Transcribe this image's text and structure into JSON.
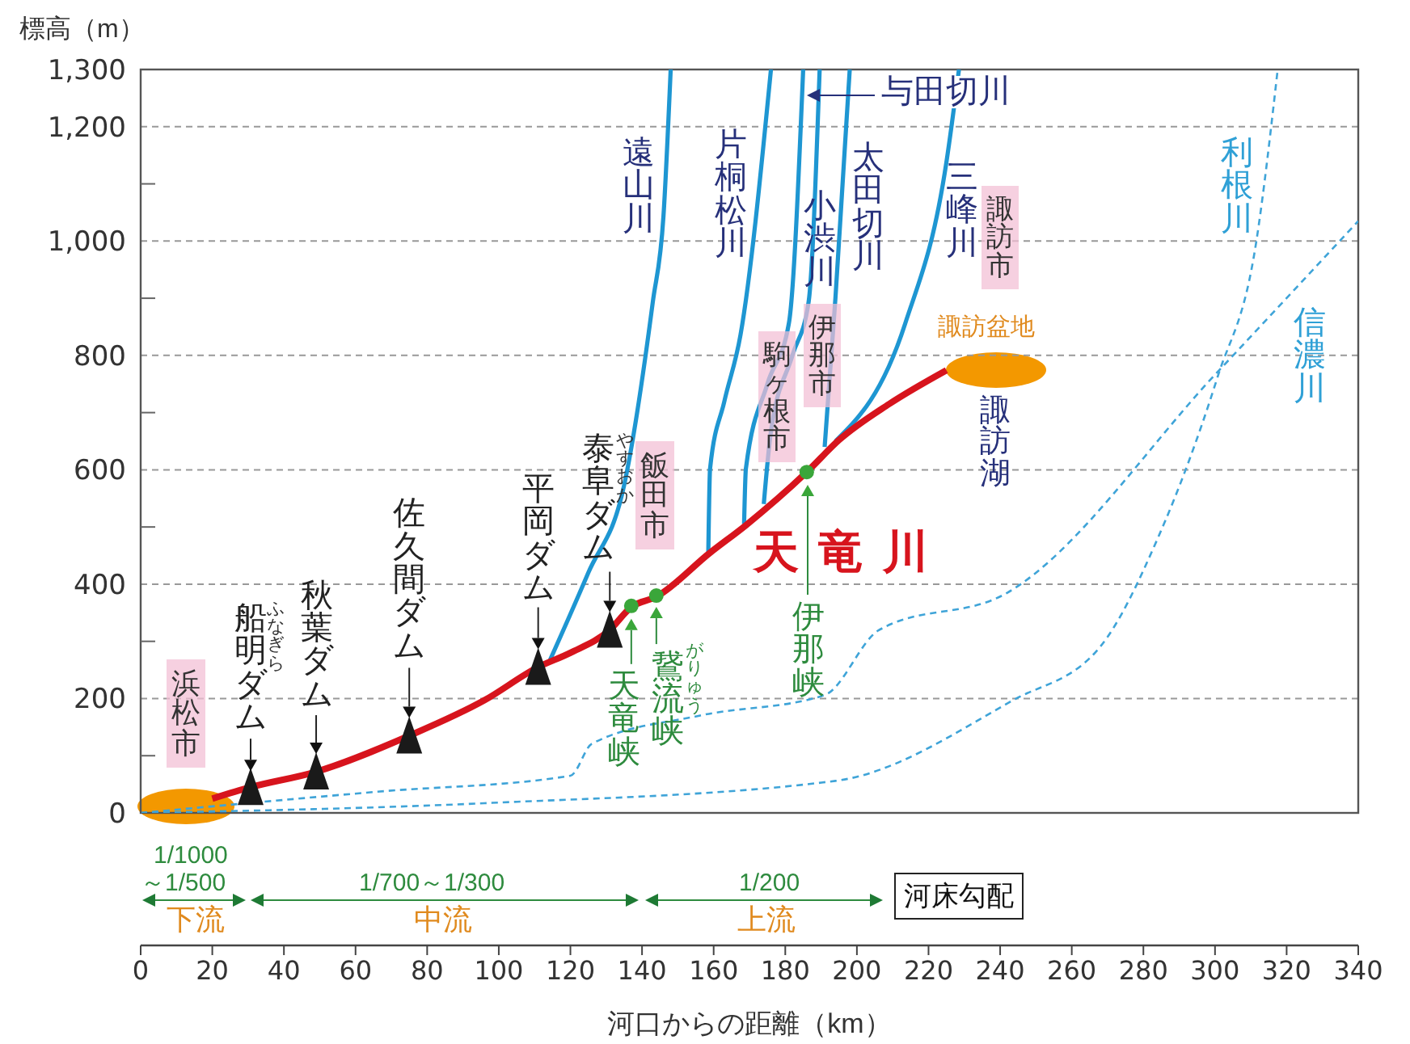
{
  "chart_data": {
    "type": "line",
    "xlabel": "河口からの距離（km）",
    "ylabel": "標高（m）",
    "xlim": [
      0,
      340
    ],
    "xticks": [
      0,
      20,
      40,
      60,
      80,
      100,
      120,
      140,
      160,
      180,
      200,
      220,
      240,
      260,
      280,
      300,
      320,
      340
    ],
    "ylim": [
      0,
      1300
    ],
    "yticks": [
      0,
      {
        "value": 100,
        "label": null
      },
      200,
      {
        "value": 300,
        "label": null
      },
      400,
      {
        "value": 500,
        "label": null
      },
      600,
      {
        "value": 700,
        "label": null
      },
      800,
      {
        "value": 900,
        "label": null
      },
      {
        "value": 1000,
        "label": "1,000"
      },
      {
        "value": 1100,
        "label": null
      },
      {
        "value": 1200,
        "label": "1,200"
      },
      {
        "value": 1300,
        "label": "1,300"
      }
    ],
    "grid": "y",
    "series": [
      {
        "name": "遠山川",
        "color": "#1e96d2",
        "marker": "none",
        "x": [
          114,
          125,
          135,
          143,
          146,
          148
        ],
        "values": [
          263,
          420,
          573,
          893,
          1045,
          1300
        ]
      },
      {
        "name": "片桐松川",
        "color": "#1e96d2",
        "marker": "none",
        "x": [
          158.5,
          159,
          163,
          167.5,
          176
        ],
        "values": [
          452,
          602,
          720,
          836,
          1300
        ]
      },
      {
        "name": "小渋川",
        "color": "#1e96d2",
        "marker": "none",
        "x": [
          168.5,
          169,
          175,
          181,
          185
        ],
        "values": [
          505,
          602,
          750,
          856,
          1300
        ]
      },
      {
        "name": "与田切川",
        "color": "#1e96d2",
        "marker": "none",
        "x": [
          174,
          176,
          182,
          186.5,
          189.6
        ],
        "values": [
          540,
          667,
          800,
          893,
          1300
        ]
      },
      {
        "name": "太田切川",
        "color": "#1e96d2",
        "marker": "none",
        "x": [
          191,
          194,
          196,
          198
        ],
        "values": [
          640,
          900,
          1100,
          1300
        ]
      },
      {
        "name": "三峰川",
        "color": "#1e96d2",
        "marker": "none",
        "x": [
          194,
          213.5,
          225,
          228.5
        ],
        "values": [
          650,
          856,
          1138,
          1300
        ]
      },
      {
        "name": "利根川",
        "color": "#3fa4d8",
        "marker": "none",
        "line_style": "dashed",
        "x": [
          0,
          96,
          194,
          243.6,
          268,
          284,
          300.7,
          311.5,
          317.5
        ],
        "values": [
          0,
          17,
          56,
          197,
          291,
          480,
          762,
          998,
          1300
        ]
      },
      {
        "name": "信濃川",
        "color": "#3fa4d8",
        "marker": "none",
        "line_style": "dashed",
        "x": [
          0,
          66,
          120,
          126,
          156,
          191,
          206,
          242,
          300.7,
          340
        ],
        "values": [
          0,
          37,
          65,
          121,
          170,
          206,
          319,
          385,
          771,
          1035
        ]
      },
      {
        "name": "天竜川",
        "color": "#d7141d",
        "marker": "none",
        "x": [
          20,
          30.7,
          49,
          75,
          96,
          111,
          120,
          131,
          137,
          144,
          159,
          169,
          186,
          195,
          209,
          225
        ],
        "values": [
          25,
          45,
          72,
          135,
          197,
          255,
          280,
          320,
          360,
          378,
          455,
          503,
          596,
          652,
          715,
          774
        ]
      },
      {
        "type": "scatter",
        "color": "#1a1a1a",
        "marker": "triangle",
        "x": [
          30.7,
          49,
          75,
          111,
          131
        ],
        "values": [
          45,
          72,
          135,
          255,
          320
        ]
      },
      {
        "type": "scatter",
        "color": "#3aa63a",
        "marker": "circle",
        "x": [
          137,
          144,
          186
        ],
        "values": [
          362,
          380,
          596
        ]
      }
    ],
    "annotations": [
      "浜松市",
      {
        "text": "船明ダム",
        "x": 30.7,
        "y": 45
      },
      "ふなぎら",
      {
        "text": "秋葉ダム",
        "x": 49,
        "y": 72
      },
      {
        "text": "佐久間ダム",
        "x": 75,
        "y": 135
      },
      {
        "text": "平岡ダム",
        "x": 111,
        "y": 255
      },
      {
        "text": "泰阜ダム",
        "x": 131,
        "y": 320
      },
      "やすおか",
      "飯田市",
      {
        "text": "天竜峡",
        "x": 137,
        "y": 362
      },
      {
        "text": "鵞流峡",
        "x": 144,
        "y": 380
      },
      "がりゅう",
      "伊那峡",
      "駒ヶ根市",
      "伊那市",
      "諏訪市",
      "諏訪盆地",
      "諏訪湖",
      "1/1000",
      "～1/500",
      "1/700～1/300",
      "1/200",
      "河床勾配",
      "下流",
      "中流",
      "上流"
    ]
  }
}
